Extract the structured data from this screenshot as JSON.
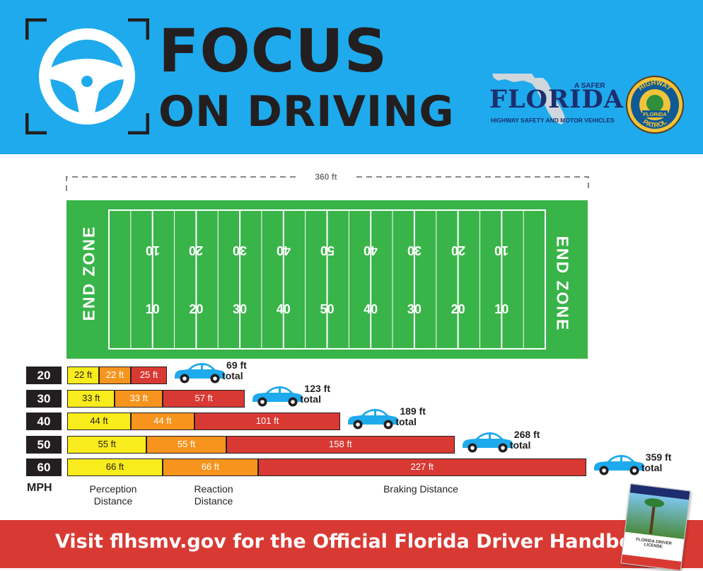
{
  "header": {
    "title_line1": "FOCUS",
    "title_line2": "ON DRIVING",
    "agency": {
      "tagline": "A SAFER",
      "name": "FLORIDA",
      "subtitle": "HIGHWAY SAFETY AND MOTOR VEHICLES"
    },
    "patrol_badge": {
      "top": "HIGHWAY",
      "center": "FLORIDA",
      "bottom": "PATROL"
    },
    "icons": [
      "steering-wheel-icon",
      "florida-map-icon",
      "highway-patrol-badge-icon"
    ]
  },
  "field": {
    "length_label": "360 ft",
    "end_zone_left": "END ZONE",
    "end_zone_right": "END ZONE",
    "yard_numbers": [
      "10",
      "20",
      "30",
      "40",
      "50",
      "40",
      "30",
      "20",
      "10"
    ]
  },
  "chart_data": {
    "type": "bar",
    "orientation": "horizontal",
    "stacked": true,
    "categories": [
      "20",
      "30",
      "40",
      "50",
      "60"
    ],
    "category_axis_label": "MPH",
    "series": [
      {
        "name": "Perception Distance",
        "values": [
          22,
          33,
          44,
          55,
          66
        ],
        "color": "#f8ec1c"
      },
      {
        "name": "Reaction Distance",
        "values": [
          22,
          33,
          44,
          55,
          66
        ],
        "color": "#f7941d"
      },
      {
        "name": "Braking Distance",
        "values": [
          25,
          57,
          101,
          158,
          227
        ],
        "color": "#d83a33"
      }
    ],
    "totals": [
      69,
      123,
      189,
      268,
      359
    ],
    "value_unit": "ft",
    "total_word": "total",
    "xlim": [
      0,
      360
    ]
  },
  "legend": {
    "perception": [
      "Perception",
      "Distance"
    ],
    "reaction": [
      "Reaction",
      "Distance"
    ],
    "braking": "Braking Distance"
  },
  "footer": {
    "text": "Visit flhsmv.gov for the Official Florida Driver Handbook."
  },
  "handbook": {
    "cover_title": "FLORIDA DRIVER LICENSE"
  },
  "colors": {
    "header_bg": "#1eaaec",
    "field_green": "#39b449",
    "footer_red": "#d83a33",
    "car_blue": "#1eaaec",
    "dark": "#231f20"
  }
}
